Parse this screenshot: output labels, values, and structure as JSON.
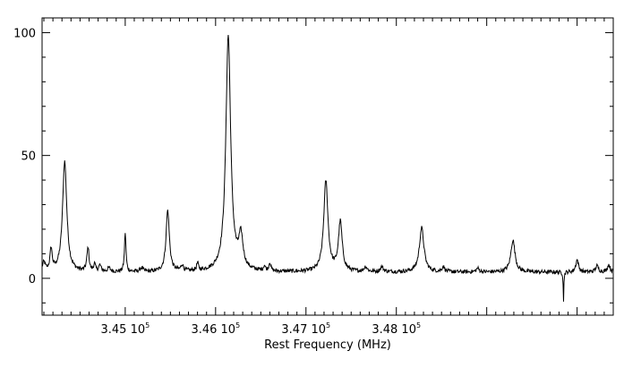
{
  "chart_data": {
    "type": "line",
    "title": "",
    "xlabel": "Rest Frequency (MHz)",
    "ylabel": "",
    "xlim": [
      344080,
      350400
    ],
    "ylim": [
      -15,
      106
    ],
    "grid": false,
    "legend": "none",
    "x_ticks": [
      {
        "value": 345000,
        "mantissa": "3.45",
        "base": " 10",
        "exp": "5"
      },
      {
        "value": 346000,
        "mantissa": "3.46",
        "base": " 10",
        "exp": "5"
      },
      {
        "value": 347000,
        "mantissa": "3.47",
        "base": " 10",
        "exp": "5"
      },
      {
        "value": 348000,
        "mantissa": "3.48",
        "base": " 10",
        "exp": "5"
      }
    ],
    "y_ticks": [
      {
        "value": 0,
        "label": "0"
      },
      {
        "value": 50,
        "label": "50"
      },
      {
        "value": 100,
        "label": "100"
      }
    ],
    "baseline": 2.5,
    "line_color": "#000000",
    "peaks": [
      {
        "x": 344100,
        "height": 3.5,
        "width": 18
      },
      {
        "x": 344180,
        "height": 9,
        "width": 14
      },
      {
        "x": 344330,
        "height": 45,
        "width": 28
      },
      {
        "x": 344580,
        "height": 2.5,
        "width": 14
      },
      {
        "x": 344590,
        "height": 8,
        "width": 12
      },
      {
        "x": 344660,
        "height": 3,
        "width": 12
      },
      {
        "x": 344720,
        "height": 2.5,
        "width": 15
      },
      {
        "x": 344820,
        "height": 1.5,
        "width": 18
      },
      {
        "x": 345000,
        "height": 16,
        "width": 10
      },
      {
        "x": 345180,
        "height": 1.5,
        "width": 20
      },
      {
        "x": 345470,
        "height": 25,
        "width": 22
      },
      {
        "x": 345630,
        "height": 2.5,
        "width": 15
      },
      {
        "x": 345800,
        "height": 3,
        "width": 12
      },
      {
        "x": 346140,
        "height": 96,
        "width": 32
      },
      {
        "x": 346280,
        "height": 13,
        "width": 28
      },
      {
        "x": 346540,
        "height": 2,
        "width": 12
      },
      {
        "x": 346600,
        "height": 3.5,
        "width": 12
      },
      {
        "x": 347220,
        "height": 37,
        "width": 28
      },
      {
        "x": 347380,
        "height": 20,
        "width": 25
      },
      {
        "x": 347660,
        "height": 2,
        "width": 20
      },
      {
        "x": 347840,
        "height": 2,
        "width": 20
      },
      {
        "x": 348280,
        "height": 18,
        "width": 30
      },
      {
        "x": 348520,
        "height": 2,
        "width": 18
      },
      {
        "x": 348900,
        "height": 1.5,
        "width": 18
      },
      {
        "x": 349290,
        "height": 13,
        "width": 28
      },
      {
        "x": 349850,
        "height": -12,
        "width": 4
      },
      {
        "x": 350000,
        "height": 5,
        "width": 18
      },
      {
        "x": 350220,
        "height": 2.5,
        "width": 20
      },
      {
        "x": 350350,
        "height": 3,
        "width": 18
      }
    ]
  }
}
